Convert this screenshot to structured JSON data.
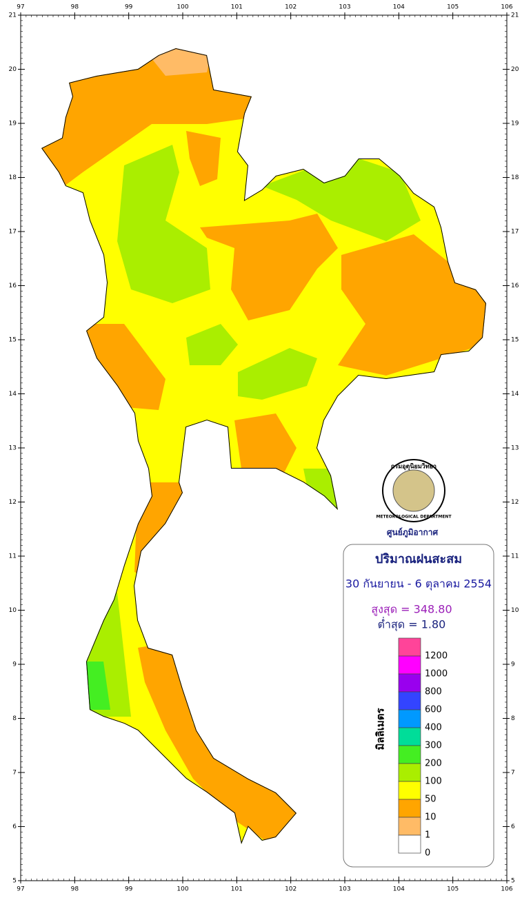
{
  "map": {
    "xlim": [
      97,
      106
    ],
    "ylim": [
      5,
      21
    ],
    "lon_ticks": [
      97,
      98,
      99,
      100,
      101,
      102,
      103,
      104,
      105,
      106
    ],
    "lat_ticks": [
      5,
      6,
      7,
      8,
      9,
      10,
      11,
      12,
      13,
      14,
      15,
      16,
      17,
      18,
      19,
      20,
      21
    ]
  },
  "logo": {
    "org": "กรมอุตุนิยมวิทยา",
    "org_en": "METEOROLOGICAL DEPARTMENT",
    "caption": "ศูนย์ภูมิอากาศ"
  },
  "legend": {
    "title": "ปริมาณฝนสะสม",
    "date": "30 กันยายน - 6 ตุลาคม 2554",
    "max": "สูงสุด = 348.80",
    "min": "ต่ำสุด = 1.80",
    "unit": "มิลลิเมตร",
    "items": [
      {
        "value": 1200,
        "color": "#ff4499"
      },
      {
        "value": 1000,
        "color": "#ff00ff"
      },
      {
        "value": 800,
        "color": "#9900ee"
      },
      {
        "value": 600,
        "color": "#3344ff"
      },
      {
        "value": 400,
        "color": "#0099ff"
      },
      {
        "value": 300,
        "color": "#00dd99"
      },
      {
        "value": 200,
        "color": "#44ee22"
      },
      {
        "value": 100,
        "color": "#aaee00"
      },
      {
        "value": 50,
        "color": "#ffff00"
      },
      {
        "value": 10,
        "color": "#ffa500"
      },
      {
        "value": 1,
        "color": "#ffbb66"
      },
      {
        "value": 0,
        "color": "#ffffff"
      }
    ]
  }
}
